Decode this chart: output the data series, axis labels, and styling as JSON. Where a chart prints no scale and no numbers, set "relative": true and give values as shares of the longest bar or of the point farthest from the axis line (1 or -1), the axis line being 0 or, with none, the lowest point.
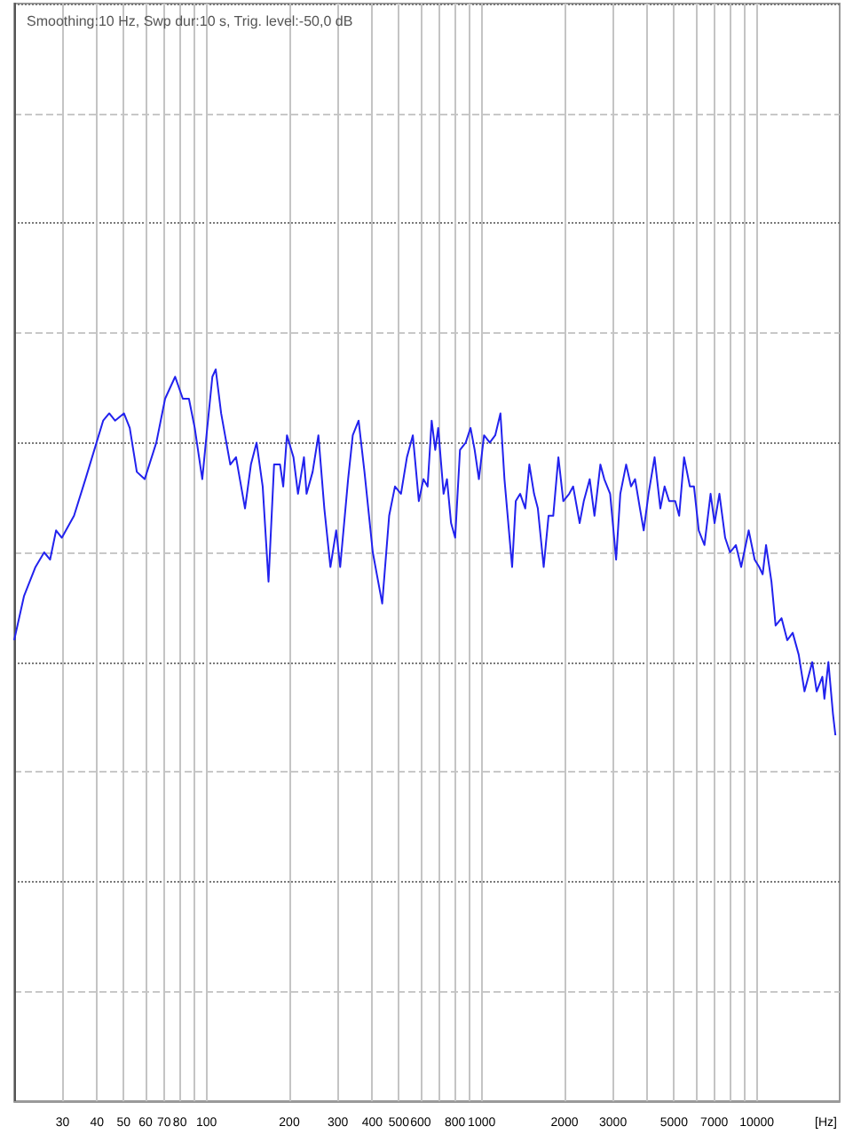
{
  "chart_data": {
    "type": "line",
    "title": "Smoothing:10 Hz, Swp dur:10 s, Trig. level:-50,0 dB",
    "xlabel": "[Hz]",
    "relative": true,
    "log": "x",
    "grid": true,
    "color": "#2222ee",
    "xlim": [
      20,
      20000
    ],
    "xticks": [
      30,
      40,
      50,
      60,
      70,
      80,
      {
        "value": 90,
        "label": null
      },
      100,
      200,
      300,
      400,
      500,
      600,
      {
        "value": 700,
        "label": null
      },
      800,
      {
        "value": 900,
        "label": null
      },
      1000,
      2000,
      3000,
      {
        "value": 4000,
        "label": null
      },
      5000,
      {
        "value": 6000,
        "label": null
      },
      7000,
      {
        "value": 8000,
        "label": null
      },
      {
        "value": 9000,
        "label": null
      },
      10000
    ],
    "x": [
      20,
      21.7,
      23.9,
      25.7,
      27,
      28.4,
      29.8,
      33,
      36.3,
      39.1,
      42.1,
      44.3,
      46.5,
      50.1,
      52.6,
      55.8,
      59.6,
      65.7,
      70.7,
      76.9,
      82,
      86.3,
      90.6,
      96.5,
      100,
      105,
      108,
      113,
      122,
      128,
      138,
      145,
      152,
      160,
      168,
      176,
      185,
      190,
      196,
      207,
      215,
      226,
      231,
      243,
      255,
      268,
      282,
      296,
      306,
      327,
      340,
      357,
      375,
      402,
      435,
      461,
      484,
      509,
      535,
      562,
      591,
      614,
      636,
      658,
      678,
      695,
      727,
      748,
      774,
      801,
      834,
      875,
      911,
      943,
      977,
      1020,
      1070,
      1120,
      1170,
      1210,
      1290,
      1330,
      1380,
      1440,
      1490,
      1550,
      1600,
      1680,
      1750,
      1820,
      1900,
      1980,
      2080,
      2150,
      2270,
      2350,
      2470,
      2570,
      2700,
      2790,
      2930,
      3080,
      3190,
      3350,
      3490,
      3610,
      3760,
      3880,
      4040,
      4250,
      4460,
      4620,
      4800,
      5050,
      5220,
      5440,
      5710,
      5910,
      6150,
      6450,
      6790,
      7020,
      7310,
      7670,
      7990,
      8390,
      8770,
      9340,
      9820,
      10200,
      10500,
      10800,
      11300,
      11700,
      12300,
      12900,
      13500,
      14200,
      14900,
      15900,
      16500,
      17300,
      17600,
      18200,
      18900,
      19300
    ],
    "values": [
      0.63,
      0.69,
      0.73,
      0.75,
      0.74,
      0.78,
      0.77,
      0.8,
      0.85,
      0.89,
      0.93,
      0.94,
      0.93,
      0.94,
      0.92,
      0.86,
      0.85,
      0.9,
      0.96,
      0.99,
      0.96,
      0.96,
      0.92,
      0.85,
      0.91,
      0.99,
      1,
      0.94,
      0.87,
      0.88,
      0.81,
      0.87,
      0.9,
      0.84,
      0.71,
      0.87,
      0.87,
      0.84,
      0.91,
      0.88,
      0.83,
      0.88,
      0.83,
      0.86,
      0.91,
      0.81,
      0.73,
      0.78,
      0.73,
      0.85,
      0.91,
      0.93,
      0.86,
      0.75,
      0.68,
      0.8,
      0.84,
      0.83,
      0.88,
      0.91,
      0.82,
      0.85,
      0.84,
      0.93,
      0.89,
      0.92,
      0.83,
      0.85,
      0.79,
      0.77,
      0.89,
      0.9,
      0.92,
      0.89,
      0.85,
      0.91,
      0.9,
      0.91,
      0.94,
      0.85,
      0.73,
      0.82,
      0.83,
      0.81,
      0.87,
      0.83,
      0.81,
      0.73,
      0.8,
      0.8,
      0.88,
      0.82,
      0.83,
      0.84,
      0.79,
      0.82,
      0.85,
      0.8,
      0.87,
      0.85,
      0.83,
      0.74,
      0.83,
      0.87,
      0.84,
      0.85,
      0.81,
      0.78,
      0.83,
      0.88,
      0.81,
      0.84,
      0.82,
      0.82,
      0.8,
      0.88,
      0.84,
      0.84,
      0.78,
      0.76,
      0.83,
      0.79,
      0.83,
      0.77,
      0.75,
      0.76,
      0.73,
      0.78,
      0.74,
      0.73,
      0.72,
      0.76,
      0.71,
      0.65,
      0.66,
      0.63,
      0.64,
      0.61,
      0.56,
      0.6,
      0.56,
      0.58,
      0.55,
      0.6,
      0.53,
      0.5
    ]
  }
}
